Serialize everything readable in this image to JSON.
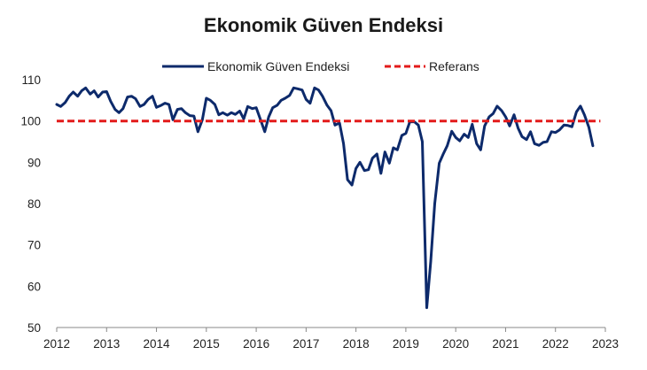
{
  "chart_data": {
    "type": "line",
    "title": "Ekonomik Güven Endeksi",
    "xlabel": "",
    "ylabel": "",
    "ylim": [
      50,
      110
    ],
    "yticks": [
      50,
      60,
      70,
      80,
      90,
      100,
      110
    ],
    "xlim": [
      2012,
      2023
    ],
    "xticks": [
      2012,
      2013,
      2014,
      2015,
      2016,
      2017,
      2018,
      2019,
      2020,
      2021,
      2022,
      2023
    ],
    "grid": false,
    "legend": "top",
    "series": [
      {
        "name": "Ekonomik Güven Endeksi",
        "color": "#0d2a6b",
        "style": "solid",
        "points": [
          [
            2012.0,
            104.0
          ],
          [
            2012.08,
            103.5
          ],
          [
            2012.17,
            104.5
          ],
          [
            2012.25,
            106.0
          ],
          [
            2012.33,
            107.0
          ],
          [
            2012.42,
            106.0
          ],
          [
            2012.5,
            107.3
          ],
          [
            2012.58,
            108.0
          ],
          [
            2012.67,
            106.5
          ],
          [
            2012.75,
            107.3
          ],
          [
            2012.83,
            105.8
          ],
          [
            2012.92,
            107.0
          ],
          [
            2013.0,
            107.1
          ],
          [
            2013.08,
            104.8
          ],
          [
            2013.17,
            102.8
          ],
          [
            2013.25,
            102.0
          ],
          [
            2013.33,
            103.0
          ],
          [
            2013.42,
            105.8
          ],
          [
            2013.5,
            106.0
          ],
          [
            2013.58,
            105.4
          ],
          [
            2013.67,
            103.5
          ],
          [
            2013.75,
            104.0
          ],
          [
            2013.83,
            105.2
          ],
          [
            2013.92,
            106.0
          ],
          [
            2014.0,
            103.3
          ],
          [
            2014.08,
            103.7
          ],
          [
            2014.17,
            104.3
          ],
          [
            2014.25,
            104.0
          ],
          [
            2014.33,
            100.3
          ],
          [
            2014.42,
            102.8
          ],
          [
            2014.5,
            103.0
          ],
          [
            2014.58,
            102.0
          ],
          [
            2014.67,
            101.3
          ],
          [
            2014.75,
            101.2
          ],
          [
            2014.83,
            97.4
          ],
          [
            2014.92,
            100.3
          ],
          [
            2015.0,
            105.5
          ],
          [
            2015.08,
            105.0
          ],
          [
            2015.17,
            104.0
          ],
          [
            2015.25,
            101.5
          ],
          [
            2015.33,
            102.0
          ],
          [
            2015.42,
            101.4
          ],
          [
            2015.5,
            102.0
          ],
          [
            2015.58,
            101.6
          ],
          [
            2015.67,
            102.4
          ],
          [
            2015.75,
            100.5
          ],
          [
            2015.83,
            103.5
          ],
          [
            2015.92,
            103.0
          ],
          [
            2016.0,
            103.2
          ],
          [
            2016.08,
            100.5
          ],
          [
            2016.17,
            97.4
          ],
          [
            2016.25,
            101.0
          ],
          [
            2016.33,
            103.2
          ],
          [
            2016.42,
            103.8
          ],
          [
            2016.5,
            105.0
          ],
          [
            2016.58,
            105.5
          ],
          [
            2016.67,
            106.2
          ],
          [
            2016.75,
            108.0
          ],
          [
            2016.83,
            107.8
          ],
          [
            2016.92,
            107.5
          ],
          [
            2017.0,
            105.2
          ],
          [
            2017.08,
            104.3
          ],
          [
            2017.17,
            108.0
          ],
          [
            2017.25,
            107.5
          ],
          [
            2017.33,
            106.0
          ],
          [
            2017.42,
            103.8
          ],
          [
            2017.5,
            102.5
          ],
          [
            2017.58,
            99.0
          ],
          [
            2017.67,
            99.5
          ],
          [
            2017.75,
            94.5
          ],
          [
            2017.83,
            85.8
          ],
          [
            2017.92,
            84.5
          ],
          [
            2018.0,
            88.5
          ],
          [
            2018.08,
            90.0
          ],
          [
            2018.17,
            88.0
          ],
          [
            2018.25,
            88.2
          ],
          [
            2018.33,
            91.0
          ],
          [
            2018.42,
            92.0
          ],
          [
            2018.5,
            87.3
          ],
          [
            2018.58,
            92.5
          ],
          [
            2018.67,
            89.8
          ],
          [
            2018.75,
            93.5
          ],
          [
            2018.83,
            93.0
          ],
          [
            2018.92,
            96.5
          ],
          [
            2019.0,
            97.0
          ],
          [
            2019.08,
            99.8
          ],
          [
            2019.17,
            99.8
          ],
          [
            2019.25,
            99.0
          ],
          [
            2019.33,
            95.0
          ],
          [
            2019.42,
            54.8
          ],
          [
            2019.5,
            66.0
          ],
          [
            2019.58,
            80.0
          ],
          [
            2019.67,
            89.8
          ],
          [
            2019.75,
            92.0
          ],
          [
            2019.83,
            94.0
          ],
          [
            2019.92,
            97.5
          ],
          [
            2020.0,
            96.0
          ],
          [
            2020.08,
            95.2
          ],
          [
            2020.17,
            96.8
          ],
          [
            2020.25,
            96.0
          ],
          [
            2020.33,
            99.2
          ],
          [
            2020.42,
            94.5
          ],
          [
            2020.5,
            93.0
          ],
          [
            2020.58,
            98.8
          ],
          [
            2020.67,
            101.0
          ],
          [
            2020.75,
            101.8
          ],
          [
            2020.83,
            103.6
          ],
          [
            2020.92,
            102.5
          ],
          [
            2021.0,
            101.0
          ],
          [
            2021.08,
            98.8
          ],
          [
            2021.17,
            101.5
          ],
          [
            2021.25,
            98.3
          ],
          [
            2021.33,
            96.2
          ],
          [
            2021.42,
            95.5
          ],
          [
            2021.5,
            97.4
          ],
          [
            2021.58,
            94.5
          ],
          [
            2021.67,
            94.1
          ],
          [
            2021.75,
            94.8
          ],
          [
            2021.83,
            95.0
          ],
          [
            2021.92,
            97.4
          ],
          [
            2022.0,
            97.2
          ],
          [
            2022.08,
            97.8
          ],
          [
            2022.17,
            99.0
          ],
          [
            2022.25,
            98.9
          ],
          [
            2022.33,
            98.6
          ],
          [
            2022.42,
            102.2
          ],
          [
            2022.5,
            103.6
          ],
          [
            2022.58,
            101.5
          ],
          [
            2022.67,
            98.5
          ],
          [
            2022.75,
            94.0
          ]
        ]
      },
      {
        "name": "Referans",
        "color": "#e31b1b",
        "style": "dashed",
        "points": [
          [
            2012.0,
            100
          ],
          [
            2022.9,
            100
          ]
        ]
      }
    ]
  }
}
